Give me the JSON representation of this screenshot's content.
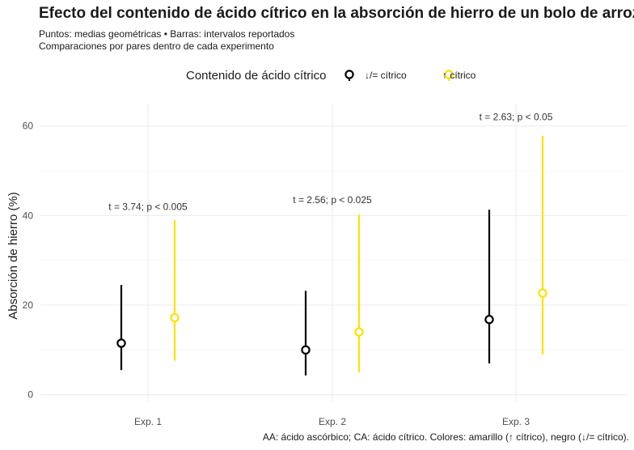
{
  "chart_data": {
    "type": "scatter",
    "title": "Efecto del contenido de ácido cítrico en la absorción de hierro de un bolo de arroz",
    "subtitle": [
      "Puntos: medias geométricas • Barras: intervalos reportados",
      "Comparaciones por pares dentro de cada experimento"
    ],
    "caption": "AA: ácido ascórbico; CA: ácido cítrico. Colores: amarillo (↑ cítrico), negro (↓/= cítrico).",
    "xlabel": "",
    "ylabel": "Absorción de hierro (%)",
    "ylim": [
      -1.5,
      65
    ],
    "yticks": [
      0,
      20,
      40,
      60
    ],
    "grid": true,
    "legend": {
      "title": "Contenido de ácido cítrico",
      "placement": "top",
      "entries": [
        {
          "label": "↓/= cítrico",
          "color": "#000000"
        },
        {
          "label": "↑ cítrico",
          "color": "#FFE000"
        }
      ]
    },
    "categories": [
      "Exp. 1",
      "Exp. 2",
      "Exp. 3"
    ],
    "series": [
      {
        "name": "↓/= cítrico",
        "color": "#000000",
        "values": [
          11.5,
          10.0,
          16.8
        ],
        "lower": [
          5.5,
          4.3,
          7.0
        ],
        "upper": [
          24.5,
          23.2,
          41.3
        ]
      },
      {
        "name": "↑ cítrico",
        "color": "#FFE000",
        "values": [
          17.2,
          14.0,
          22.7
        ],
        "lower": [
          7.6,
          5.0,
          9.0
        ],
        "upper": [
          39.0,
          40.2,
          57.8
        ]
      }
    ],
    "annotations": [
      {
        "category": "Exp. 1",
        "text": "t = 3.74; p < 0.005",
        "y": 42
      },
      {
        "category": "Exp. 2",
        "text": "t = 2.56; p < 0.025",
        "y": 43.5
      },
      {
        "category": "Exp. 3",
        "text": "t = 2.63; p < 0.05",
        "y": 62
      }
    ]
  }
}
